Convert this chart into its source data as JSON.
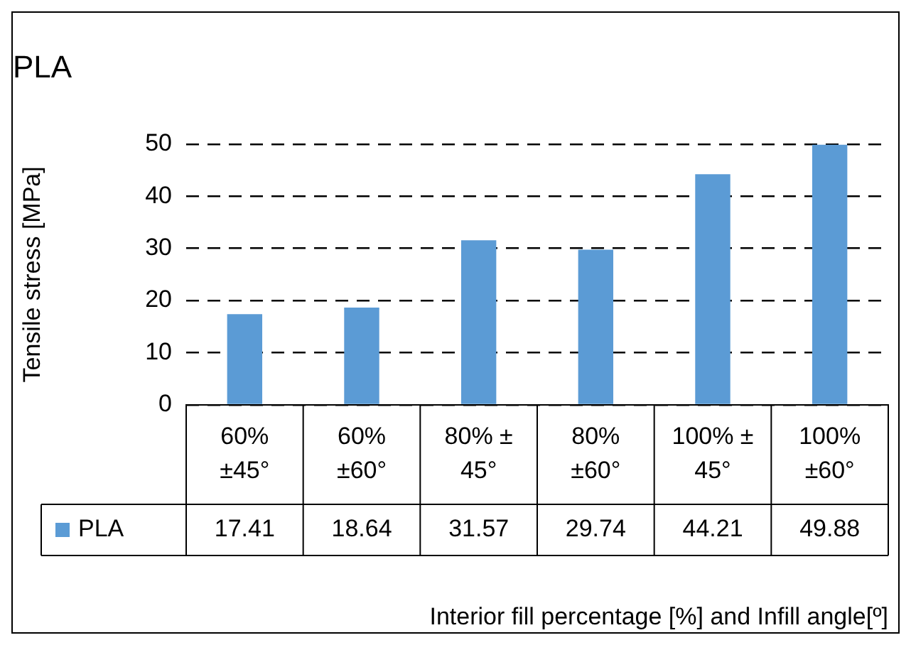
{
  "chart_data": {
    "type": "bar",
    "title": "PLA",
    "ylabel": "Tensile stress [MPa]",
    "xlabel": "Interior fill percentage [%] and Infill angle[º]",
    "categories": [
      "60% ±45°",
      "60% ±60°",
      "80% ± 45°",
      "80% ±60°",
      "100% ± 45°",
      "100% ±60°"
    ],
    "series": [
      {
        "name": "PLA",
        "color": "#5b9bd5",
        "values": [
          17.41,
          18.64,
          31.57,
          29.74,
          44.21,
          49.88
        ]
      }
    ],
    "ylim": [
      0,
      50
    ],
    "yticks": [
      0,
      10,
      20,
      30,
      40,
      50
    ],
    "grid": "y",
    "data_labels": true
  }
}
